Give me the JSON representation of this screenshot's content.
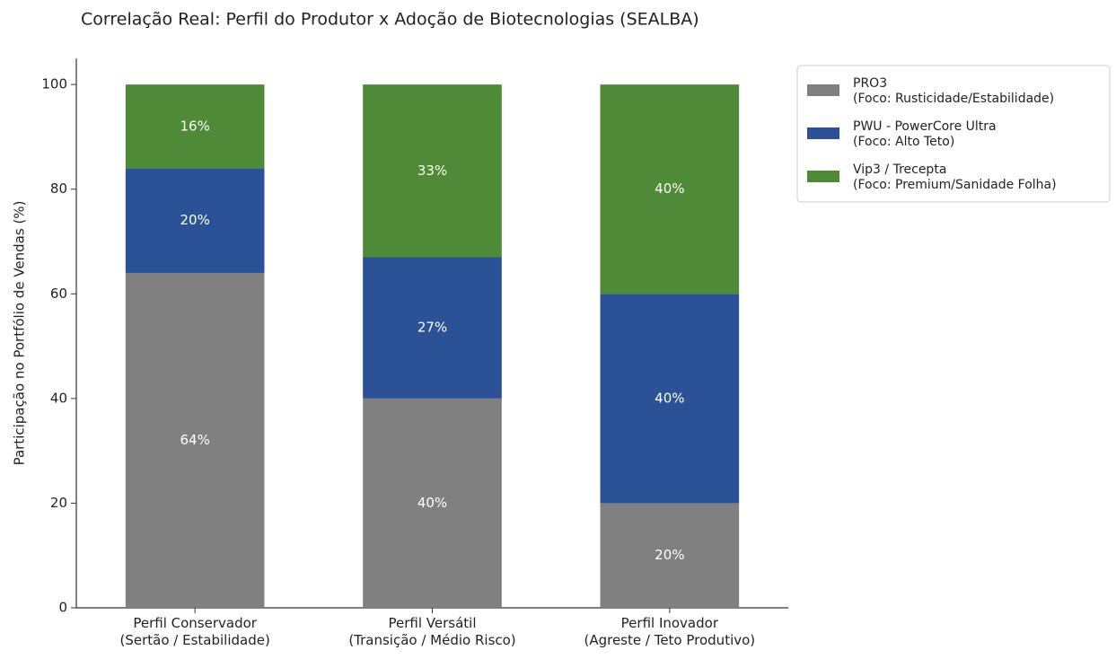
{
  "chart_data": {
    "type": "stacked_bar",
    "title": "Correlação Real: Perfil do Produtor x Adoção de Biotecnologias (SEALBA)",
    "y_label": "Participação no Portfólio de Vendas (%)",
    "categories": [
      "Perfil Conservador\n(Sertão / Estabilidade)",
      "Perfil Versátil\n(Transição / Médio Risco)",
      "Perfil Inovador\n(Agreste / Teto Produtivo)"
    ],
    "series": [
      {
        "name": "PRO3\n(Foco: Rusticidade/Estabilidade)",
        "color": "#808080",
        "values": [
          64,
          40,
          20
        ],
        "value_labels": [
          "64%",
          "40%",
          "20%"
        ]
      },
      {
        "name": "PWU - PowerCore Ultra\n(Foco: Alto Teto)",
        "color": "#2b5196",
        "values": [
          20,
          27,
          40
        ],
        "value_labels": [
          "20%",
          "27%",
          "40%"
        ]
      },
      {
        "name": "Vip3 / Trecepta\n(Foco: Premium/Sanidade Folha)",
        "color": "#4f8a36",
        "values": [
          16,
          33,
          40
        ],
        "value_labels": [
          "16%",
          "33%",
          "40%"
        ]
      }
    ],
    "ylim": [
      0,
      105
    ],
    "yticks": [
      0,
      20,
      40,
      60,
      80,
      100
    ],
    "grid": false,
    "legend": "outside upper right"
  }
}
